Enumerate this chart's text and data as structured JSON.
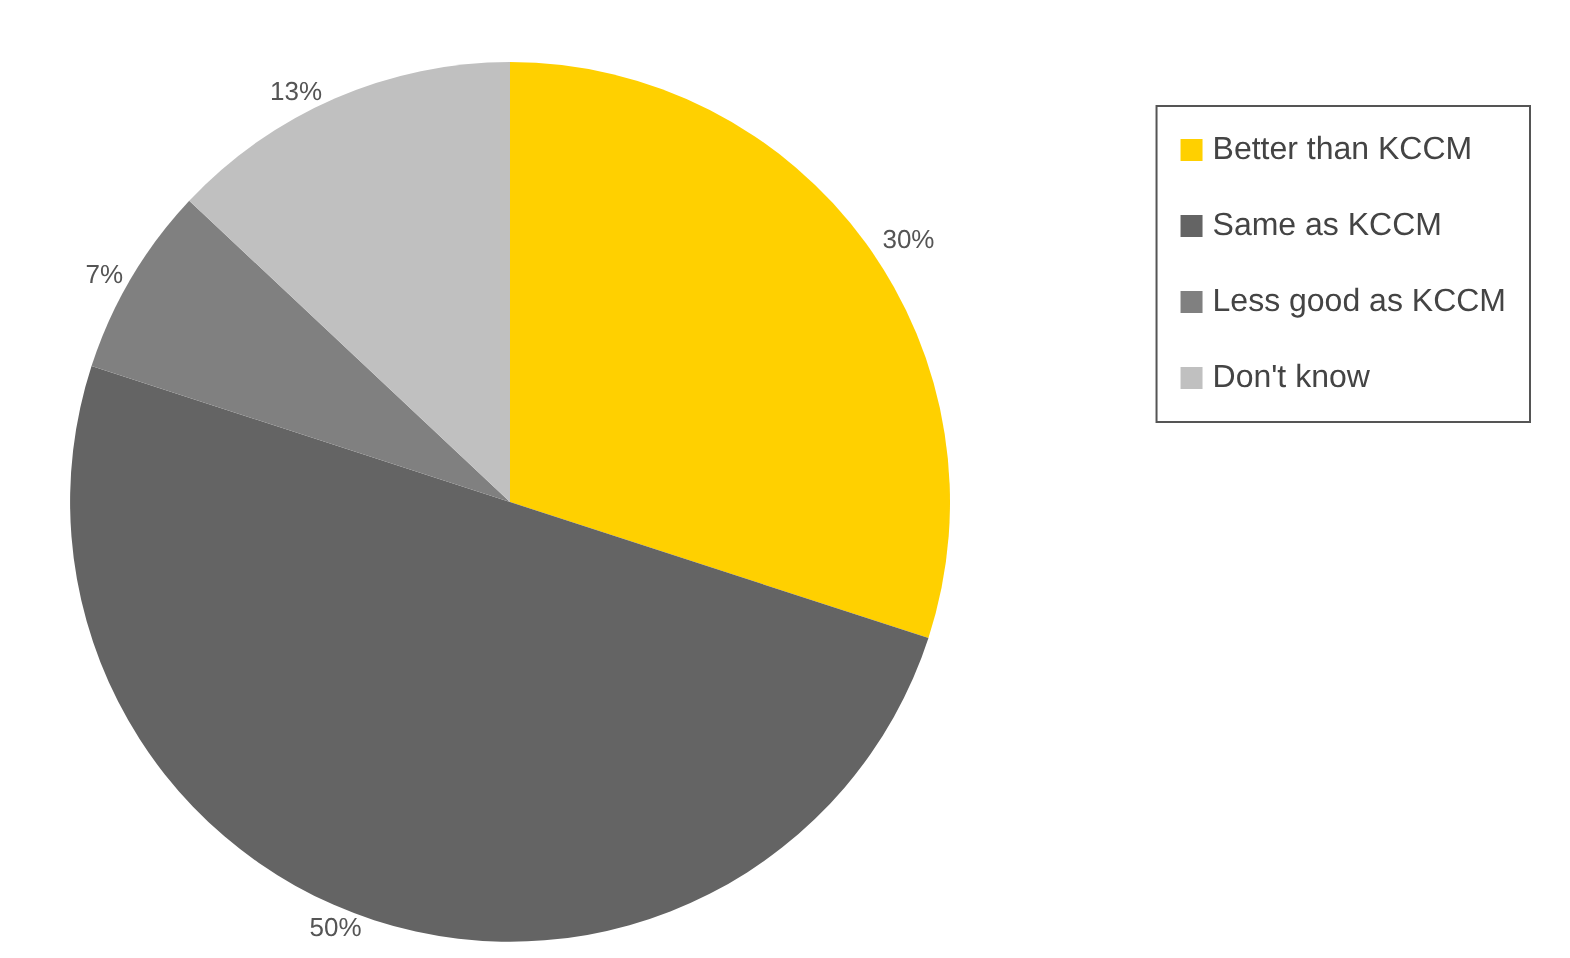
{
  "chart_data": {
    "type": "pie",
    "categories": [
      "Better than KCCM",
      "Same as KCCM",
      "Less good as KCCM",
      "Don't know"
    ],
    "values": [
      30,
      50,
      7,
      13
    ],
    "colors": [
      "#ffd000",
      "#646464",
      "#808080",
      "#c0c0c0"
    ],
    "value_labels": [
      "30%",
      "50%",
      "7%",
      "13%"
    ],
    "legend": "right"
  }
}
